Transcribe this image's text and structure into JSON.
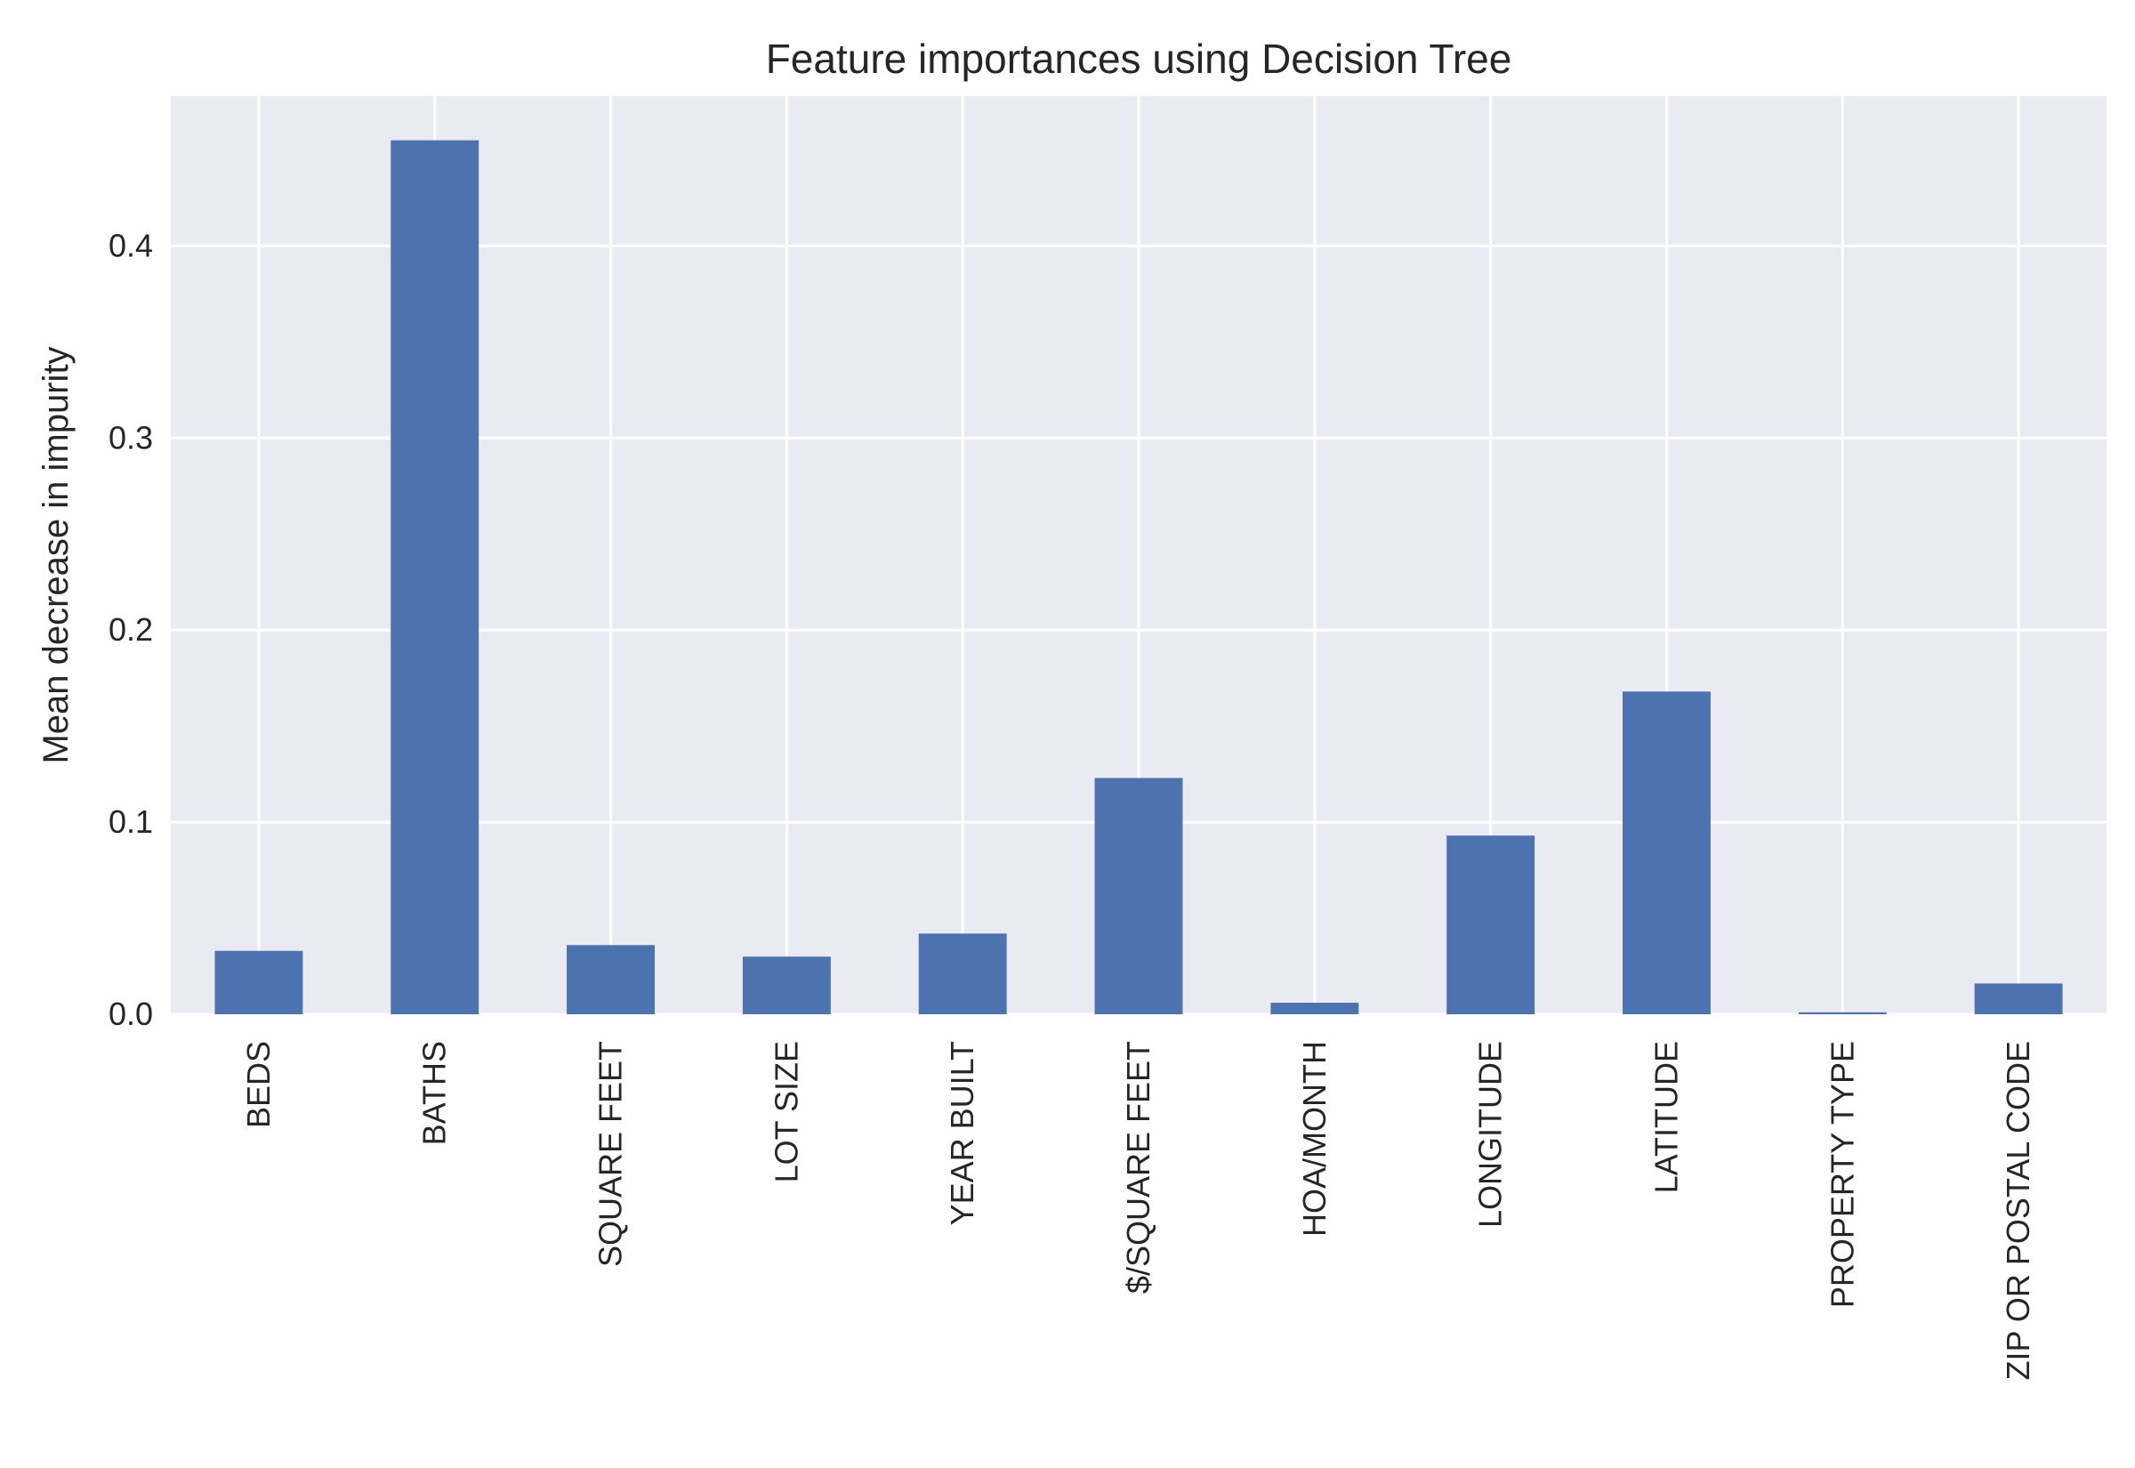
{
  "chart_data": {
    "type": "bar",
    "title": "Feature importances using Decision Tree",
    "xlabel": "",
    "ylabel": "Mean decrease in impurity",
    "categories": [
      "BEDS",
      "BATHS",
      "SQUARE FEET",
      "LOT SIZE",
      "YEAR BUILT",
      "$/SQUARE FEET",
      "HOA/MONTH",
      "LONGITUDE",
      "LATITUDE",
      "PROPERTY TYPE",
      "ZIP OR POSTAL CODE"
    ],
    "values": [
      0.033,
      0.455,
      0.036,
      0.03,
      0.042,
      0.123,
      0.006,
      0.093,
      0.168,
      0.001,
      0.016
    ],
    "ylim": [
      0,
      0.478
    ],
    "yticks": [
      0.0,
      0.1,
      0.2,
      0.3,
      0.4
    ],
    "ytick_labels": [
      "0.0",
      "0.1",
      "0.2",
      "0.3",
      "0.4"
    ],
    "grid": true,
    "legend": "none",
    "colors": {
      "bar": "#4c72b0",
      "plot_background": "#eaeaf2",
      "grid": "#ffffff",
      "text": "#262626"
    }
  }
}
